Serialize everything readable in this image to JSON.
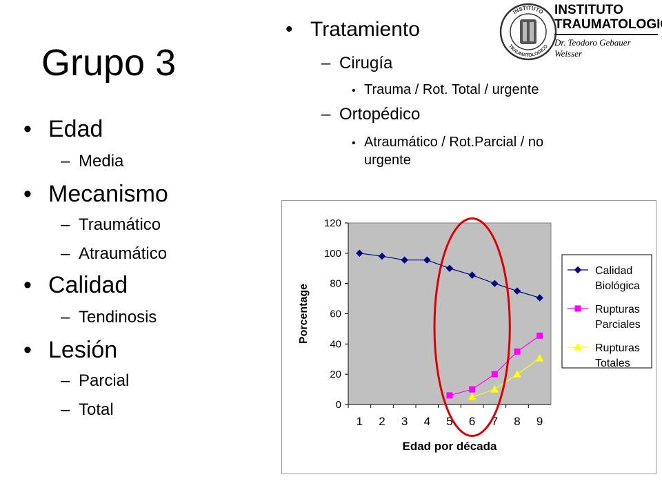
{
  "slide": {
    "title": "Grupo 3",
    "left_list": [
      {
        "label": "Edad",
        "subs": [
          "Media"
        ]
      },
      {
        "label": "Mecanismo",
        "subs": [
          "Traumático",
          "Atraumático"
        ]
      },
      {
        "label": "Calidad",
        "subs": [
          "Tendinosis"
        ]
      },
      {
        "label": "Lesión",
        "subs": [
          "Parcial",
          "Total"
        ]
      }
    ],
    "right_list": {
      "label": "Tratamiento",
      "subs": [
        {
          "label": "Cirugía",
          "items": [
            "Trauma / Rot. Total / urgente"
          ]
        },
        {
          "label": "Ortopédico",
          "items": [
            "Atraumático / Rot.Parcial / no",
            "urgente"
          ]
        }
      ]
    },
    "logo": {
      "line1": "INSTITUTO",
      "line2": "TRAUMATOLOGICO",
      "line3": "Dr. Teodoro Gebauer Weisser",
      "seal_top": "INSTITUTO",
      "seal_bottom": "TRAUMATOLOGICO"
    }
  },
  "colors": {
    "plot_bg": "#c0c0c0",
    "series_1": "#000080",
    "series_2": "#ff00ff",
    "series_3": "#ffff00",
    "highlight": "#dd0000"
  },
  "chart_data": {
    "type": "line",
    "xlabel": "Edad por década",
    "ylabel": "Porcentage",
    "categories": [
      "1",
      "2",
      "3",
      "4",
      "5",
      "6",
      "7",
      "8",
      "9"
    ],
    "ylim": [
      0,
      120
    ],
    "yticks": [
      "0",
      "20",
      "40",
      "60",
      "80",
      "100",
      "120"
    ],
    "grid": false,
    "legend_position": "right",
    "series": [
      {
        "name_lines": [
          "Calidad",
          "Biológica"
        ],
        "marker": "diamond",
        "values": [
          100,
          98,
          95.5,
          95.5,
          90,
          85.5,
          80,
          75,
          70.5
        ]
      },
      {
        "name_lines": [
          "Rupturas",
          "Parciales"
        ],
        "marker": "square",
        "values": [
          null,
          null,
          null,
          null,
          6,
          10,
          20,
          35,
          45.5
        ]
      },
      {
        "name_lines": [
          "Rupturas",
          "Totales"
        ],
        "marker": "triangle",
        "values": [
          null,
          null,
          null,
          null,
          null,
          5,
          10,
          20,
          30.5
        ]
      }
    ],
    "highlight": {
      "shape": "ellipse",
      "categories": [
        "5",
        "6",
        "7"
      ]
    }
  }
}
